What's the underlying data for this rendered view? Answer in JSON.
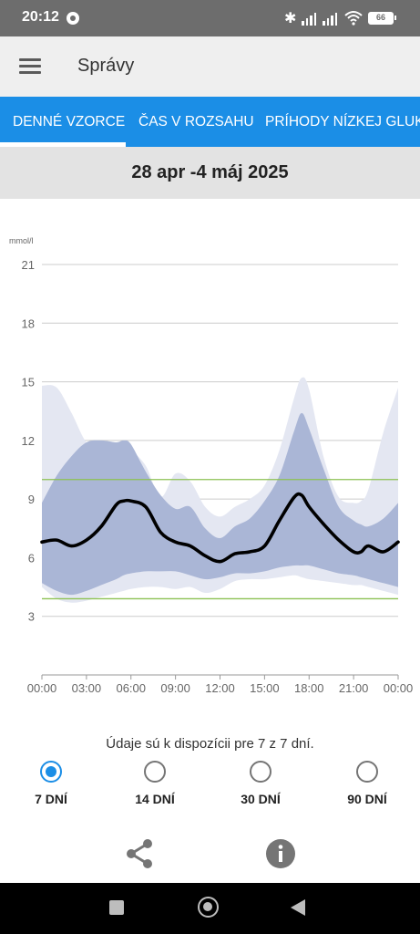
{
  "status_bar": {
    "time": "20:12",
    "battery": "66",
    "icons": [
      "do-not-disturb-icon",
      "bluetooth-icon",
      "signal-icon",
      "signal-icon",
      "wifi-icon",
      "battery-icon"
    ]
  },
  "app_bar": {
    "title": "Správy",
    "menu_icon": "hamburger-menu-icon"
  },
  "tabs": [
    {
      "label": "DENNÉ VZORCE",
      "active": true
    },
    {
      "label": "ČAS V ROZSAHU",
      "active": false
    },
    {
      "label": "PRÍHODY NÍZKEJ GLUKÓ",
      "active": false
    }
  ],
  "date_range": "28 apr -4 máj 2025",
  "chart_data": {
    "type": "area",
    "ylabel": "mmol/l",
    "ylim": [
      0,
      21
    ],
    "yticks": [
      "21",
      "18",
      "15",
      "12",
      "9",
      "6",
      "3"
    ],
    "xticks": [
      "00:00",
      "03:00",
      "06:00",
      "09:00",
      "12:00",
      "15:00",
      "18:00",
      "21:00",
      "00:00"
    ],
    "xlim": [
      0,
      24
    ],
    "target_range": [
      3.9,
      10.0
    ],
    "colors": {
      "outer_band": "#e4e7f2",
      "inner_band": "#aab6d6",
      "median": "#000000",
      "target_lines": "#8cc152",
      "grid": "#cccccc",
      "axis_text": "#666666"
    },
    "x": [
      0,
      1,
      2,
      3,
      4,
      5,
      5.5,
      6,
      7,
      8,
      9,
      10,
      11,
      12,
      13,
      14,
      15,
      16,
      17,
      17.5,
      18,
      19,
      20,
      21,
      21.5,
      22,
      23,
      24
    ],
    "series": [
      {
        "values": [
          6.8,
          6.9,
          6.6,
          6.9,
          7.6,
          8.7,
          8.9,
          8.9,
          8.6,
          7.3,
          6.8,
          6.6,
          6.1,
          5.8,
          6.2,
          6.3,
          6.6,
          7.9,
          9.1,
          9.2,
          8.6,
          7.7,
          6.9,
          6.3,
          6.3,
          6.6,
          6.3,
          6.8
        ]
      },
      {
        "values": [
          8.8,
          10.2,
          11.2,
          11.9,
          12.0,
          11.9,
          12.0,
          11.8,
          10.4,
          9.2,
          8.5,
          8.6,
          7.5,
          7.0,
          7.6,
          8.0,
          8.9,
          10.2,
          12.5,
          13.4,
          12.6,
          10.5,
          8.6,
          7.9,
          7.7,
          7.6,
          8.0,
          8.8
        ]
      },
      {
        "values": [
          4.7,
          4.3,
          4.1,
          4.3,
          4.6,
          4.9,
          5.1,
          5.2,
          5.3,
          5.3,
          5.3,
          5.1,
          4.9,
          5.0,
          5.2,
          5.2,
          5.3,
          5.5,
          5.6,
          5.6,
          5.6,
          5.4,
          5.2,
          5.1,
          5.0,
          4.9,
          4.7,
          4.5
        ]
      },
      {
        "values": [
          14.8,
          14.7,
          13.4,
          11.9,
          11.5,
          11.5,
          11.6,
          11.5,
          10.7,
          9.1,
          10.3,
          9.9,
          8.6,
          8.1,
          8.6,
          9.0,
          9.7,
          11.5,
          14.2,
          15.2,
          14.6,
          11.1,
          9.1,
          8.8,
          8.9,
          9.5,
          12.4,
          14.7
        ]
      },
      {
        "values": [
          4.5,
          3.9,
          3.7,
          3.8,
          4.0,
          4.2,
          4.3,
          4.4,
          4.5,
          4.5,
          4.4,
          4.5,
          4.2,
          4.4,
          4.8,
          4.9,
          4.9,
          5.0,
          5.1,
          5.0,
          4.9,
          4.8,
          4.7,
          4.6,
          4.6,
          4.5,
          4.3,
          4.1
        ]
      }
    ]
  },
  "availability_text": "Údaje sú k dispozícii pre 7 z 7 dní.",
  "range_options": [
    {
      "label": "7 DNÍ",
      "selected": true
    },
    {
      "label": "14 DNÍ",
      "selected": false
    },
    {
      "label": "30 DNÍ",
      "selected": false
    },
    {
      "label": "90 DNÍ",
      "selected": false
    }
  ],
  "actions": {
    "share_icon": "share-icon",
    "info_icon": "info-icon"
  },
  "nav_bar": {
    "icons": [
      "recent-apps-icon",
      "home-icon",
      "back-icon"
    ]
  }
}
